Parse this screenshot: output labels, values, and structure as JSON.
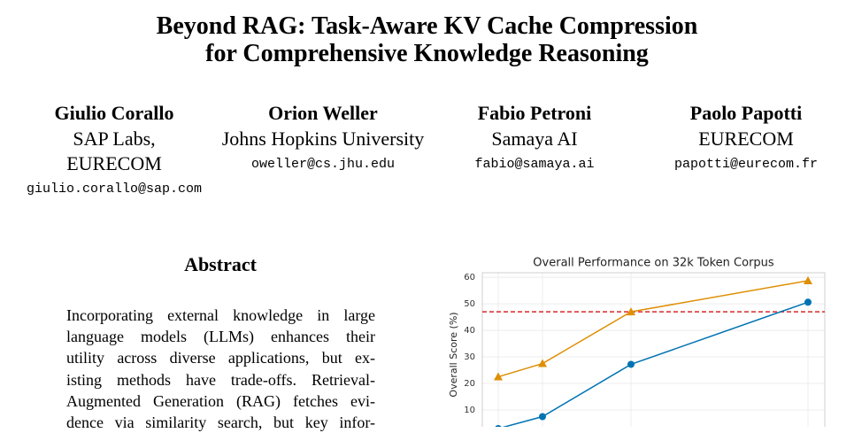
{
  "header": {
    "title_lines": [
      "Beyond RAG: Task-Aware KV Cache Compression",
      "for Comprehensive Knowledge Reasoning"
    ]
  },
  "authors": [
    {
      "name": "Giulio Corallo",
      "affiliation": [
        "SAP Labs,",
        "EURECOM"
      ],
      "email": "giulio.corallo@sap.com"
    },
    {
      "name": "Orion Weller",
      "affiliation": [
        "Johns Hopkins University"
      ],
      "email": "oweller@cs.jhu.edu"
    },
    {
      "name": "Fabio Petroni",
      "affiliation": [
        "Samaya AI"
      ],
      "email": "fabio@samaya.ai"
    },
    {
      "name": "Paolo Papotti",
      "affiliation": [
        "EURECOM"
      ],
      "email": "papotti@eurecom.fr"
    }
  ],
  "abstract": {
    "heading": "Abstract",
    "lines": [
      "Incorporating external knowledge in large",
      "language models (LLMs) enhances their",
      "utility across diverse applications, but ex-",
      "isting methods have trade-offs. Retrieval-",
      "Augmented Generation (RAG) fetches evi-",
      "dence via similarity search, but key infor-"
    ]
  },
  "chart_data": {
    "type": "line",
    "title": "Overall Performance on 32k Token Corpus",
    "y_label": "Overall Score (%)",
    "x": [
      1,
      2,
      4,
      8
    ],
    "xlim": [
      0.64,
      8.38
    ],
    "series": [
      {
        "color": "#0173b2",
        "marker": "circle",
        "values": [
          3,
          7.5,
          27.2,
          50.6
        ]
      },
      {
        "color": "#de8f05",
        "marker": "triangle",
        "values": [
          22.5,
          27.5,
          47,
          58.7
        ]
      }
    ],
    "reference_line": {
      "value": 47,
      "color": "#d62728"
    },
    "ylim": [
      0,
      61.7
    ],
    "yticks": [
      10,
      20,
      30,
      40,
      50,
      60
    ],
    "grid": true
  }
}
